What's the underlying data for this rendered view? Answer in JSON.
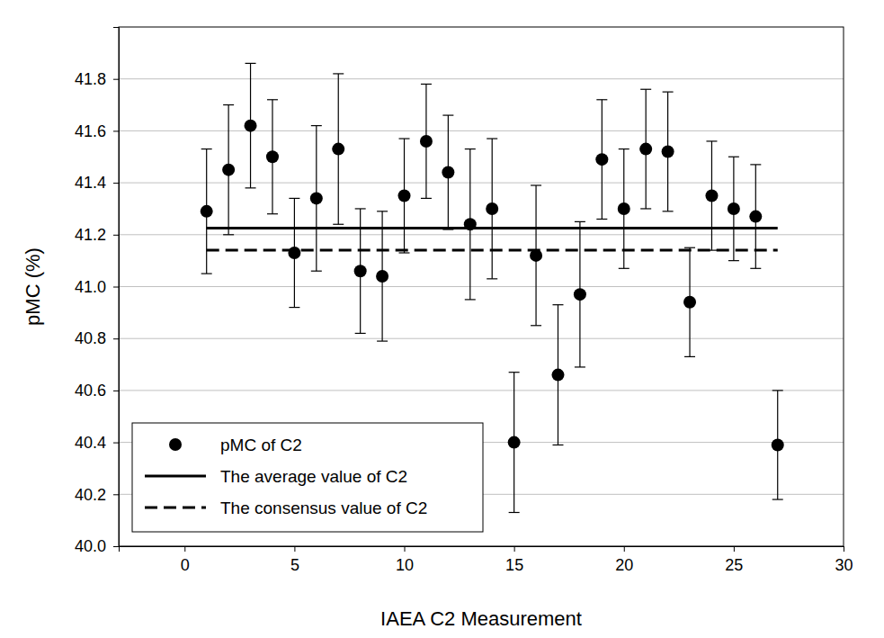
{
  "chart_data": {
    "type": "scatter",
    "xlabel": "IAEA C2 Measurement",
    "ylabel": "pMC (%)",
    "xlim": [
      -3,
      30
    ],
    "xticks": [
      0,
      5,
      10,
      15,
      20,
      25,
      30
    ],
    "ylim": [
      40,
      42
    ],
    "yticks": [
      {
        "value": 40,
        "label": "40.0"
      },
      40.2,
      40.4,
      40.6,
      40.8,
      {
        "value": 41,
        "label": "41.0"
      },
      41.2,
      41.4,
      41.6,
      41.8
    ],
    "grid": true,
    "legend": "lower left",
    "series": [
      {
        "name": "pMC of C2",
        "type": "scatter",
        "color": "#000000",
        "marker": "circle",
        "x": [
          1,
          2,
          3,
          4,
          5,
          6,
          7,
          8,
          9,
          10,
          11,
          12,
          13,
          14,
          15,
          16,
          17,
          18,
          19,
          20,
          21,
          22,
          23,
          24,
          25,
          26,
          27
        ],
        "values": [
          41.29,
          41.45,
          41.62,
          41.5,
          41.13,
          41.34,
          41.53,
          41.06,
          41.04,
          41.35,
          41.56,
          41.44,
          41.24,
          41.3,
          40.4,
          41.12,
          40.66,
          40.97,
          41.49,
          41.3,
          41.53,
          41.52,
          40.94,
          41.35,
          41.3,
          41.27,
          40.39
        ],
        "error": [
          0.24,
          0.25,
          0.24,
          0.22,
          0.21,
          0.28,
          0.29,
          0.24,
          0.25,
          0.22,
          0.22,
          0.22,
          0.29,
          0.27,
          0.27,
          0.27,
          0.27,
          0.28,
          0.23,
          0.23,
          0.23,
          0.23,
          0.21,
          0.21,
          0.2,
          0.2,
          0.21
        ]
      },
      {
        "name": "The average value of C2",
        "type": "line",
        "color": "#000000",
        "line_style": "solid",
        "x": [
          1,
          27
        ],
        "values": [
          41.225,
          41.225
        ]
      },
      {
        "name": "The consensus value of C2",
        "type": "line",
        "color": "#000000",
        "line_style": "dashed",
        "x": [
          1,
          27
        ],
        "values": [
          41.14,
          41.14
        ]
      }
    ]
  }
}
